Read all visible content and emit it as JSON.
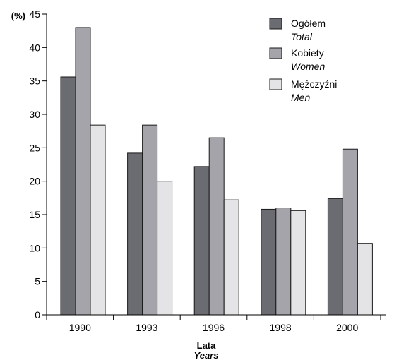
{
  "chart_data": {
    "type": "bar",
    "y_unit_label": "(%)",
    "xlabel": "Lata",
    "xlabel_secondary": "Years",
    "ylabel": "",
    "ylim": [
      0,
      45
    ],
    "yticks": [
      0,
      5,
      10,
      15,
      20,
      25,
      30,
      35,
      40,
      45
    ],
    "grid": false,
    "legend_position": "top-right",
    "categories": [
      "1990",
      "1993",
      "1996",
      "1998",
      "2000"
    ],
    "series": [
      {
        "name": "Ogółem",
        "name_secondary": "Total",
        "color": "#6b6b72",
        "values": [
          35.6,
          24.2,
          22.2,
          15.8,
          17.4
        ]
      },
      {
        "name": "Kobiety",
        "name_secondary": "Women",
        "color": "#a4a4aa",
        "values": [
          43.0,
          28.4,
          26.5,
          16.0,
          24.8
        ]
      },
      {
        "name": "Mężczyźni",
        "name_secondary": "Men",
        "color": "#e4e4e6",
        "values": [
          28.4,
          20.0,
          17.2,
          15.6,
          10.7
        ]
      }
    ]
  }
}
